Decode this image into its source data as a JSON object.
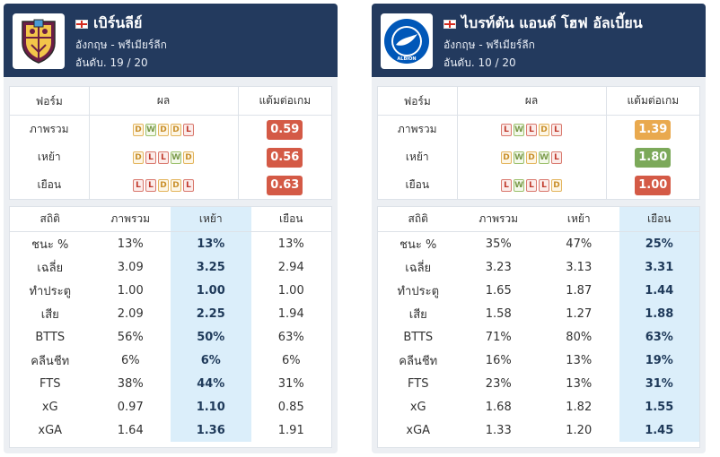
{
  "columns": {
    "form_headers": [
      "ฟอร์ม",
      "ผล",
      "แต้มต่อเกม"
    ],
    "stats_headers": [
      "สถิติ",
      "ภาพรวม",
      "เหย้า",
      "เยือน"
    ]
  },
  "colors": {
    "header_bg": "#233a5e",
    "ppg_red": "#d45a46",
    "ppg_amber": "#e9a94e",
    "ppg_green": "#7ca95a",
    "highlight": "#dbeefa"
  },
  "teams": [
    {
      "name": "เบิร์นลีย์",
      "league": "อังกฤษ - พรีเมียร์ลีก",
      "rank": "อันดับ. 19 / 20",
      "logo": "burnley-crest-icon",
      "highlight_col": 2,
      "form": [
        {
          "label": "ภาพรวม",
          "results": [
            "D",
            "W",
            "D",
            "D",
            "L"
          ],
          "ppg": "0.59",
          "ppg_color": "#d45a46"
        },
        {
          "label": "เหย้า",
          "results": [
            "D",
            "L",
            "L",
            "W",
            "D"
          ],
          "ppg": "0.56",
          "ppg_color": "#d45a46"
        },
        {
          "label": "เยือน",
          "results": [
            "L",
            "L",
            "D",
            "D",
            "L"
          ],
          "ppg": "0.63",
          "ppg_color": "#d45a46"
        }
      ],
      "stats": [
        [
          "ชนะ %",
          "13%",
          "13%",
          "13%"
        ],
        [
          "เฉลี่ย",
          "3.09",
          "3.25",
          "2.94"
        ],
        [
          "ทำประตู",
          "1.00",
          "1.00",
          "1.00"
        ],
        [
          "เสีย",
          "2.09",
          "2.25",
          "1.94"
        ],
        [
          "BTTS",
          "56%",
          "50%",
          "63%"
        ],
        [
          "คลีนชีท",
          "6%",
          "6%",
          "6%"
        ],
        [
          "FTS",
          "38%",
          "44%",
          "31%"
        ],
        [
          "xG",
          "0.97",
          "1.10",
          "0.85"
        ],
        [
          "xGA",
          "1.64",
          "1.36",
          "1.91"
        ]
      ]
    },
    {
      "name": "ไบรท์ตัน แอนด์ โฮฟ อัลเบี้ยน",
      "league": "อังกฤษ - พรีเมียร์ลีก",
      "rank": "อันดับ. 10 / 20",
      "logo": "brighton-crest-icon",
      "logo_text": "ALBION",
      "highlight_col": 3,
      "form": [
        {
          "label": "ภาพรวม",
          "results": [
            "L",
            "W",
            "L",
            "D",
            "L"
          ],
          "ppg": "1.39",
          "ppg_color": "#e9a94e"
        },
        {
          "label": "เหย้า",
          "results": [
            "D",
            "W",
            "D",
            "W",
            "L"
          ],
          "ppg": "1.80",
          "ppg_color": "#7ca95a"
        },
        {
          "label": "เยือน",
          "results": [
            "L",
            "W",
            "L",
            "L",
            "D"
          ],
          "ppg": "1.00",
          "ppg_color": "#d45a46"
        }
      ],
      "stats": [
        [
          "ชนะ %",
          "35%",
          "47%",
          "25%"
        ],
        [
          "เฉลี่ย",
          "3.23",
          "3.13",
          "3.31"
        ],
        [
          "ทำประตู",
          "1.65",
          "1.87",
          "1.44"
        ],
        [
          "เสีย",
          "1.58",
          "1.27",
          "1.88"
        ],
        [
          "BTTS",
          "71%",
          "80%",
          "63%"
        ],
        [
          "คลีนชีท",
          "16%",
          "13%",
          "19%"
        ],
        [
          "FTS",
          "23%",
          "13%",
          "31%"
        ],
        [
          "xG",
          "1.68",
          "1.82",
          "1.55"
        ],
        [
          "xGA",
          "1.33",
          "1.20",
          "1.45"
        ]
      ]
    }
  ]
}
